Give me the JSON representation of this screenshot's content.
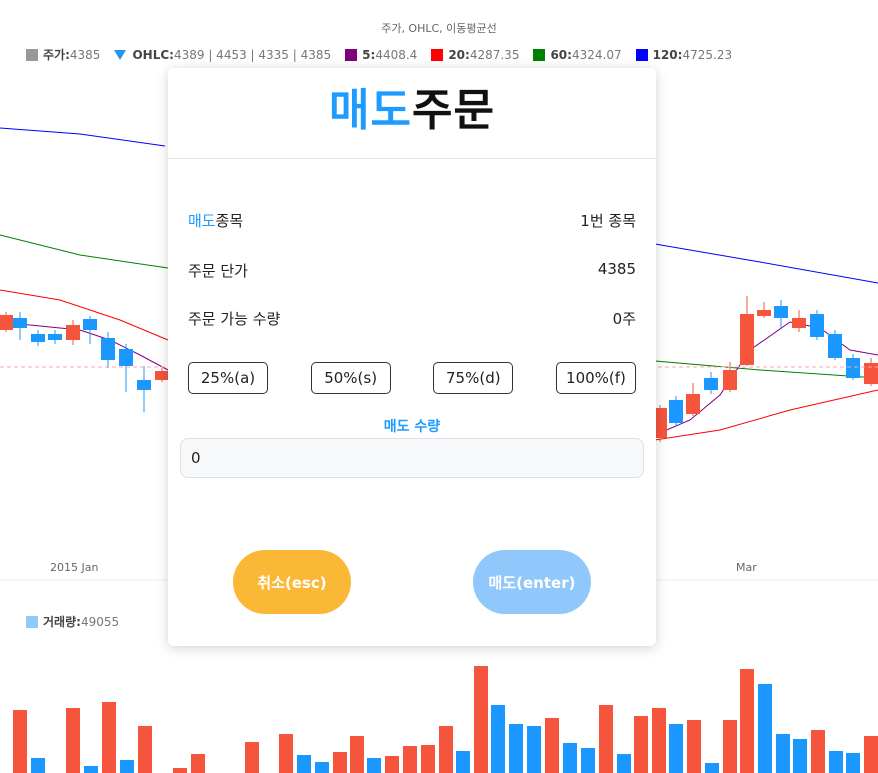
{
  "chart": {
    "title": "주가, OHLC, 이동평균선",
    "legend": [
      {
        "key": "price",
        "name": "주가",
        "value": "4385",
        "color": "#999999",
        "shape": "square"
      },
      {
        "key": "ohlc",
        "name": "OHLC",
        "value": "4389 | 4453 | 4335 | 4385",
        "color": "#2196f3",
        "shape": "triangle-down"
      },
      {
        "key": "ma5",
        "name": "5",
        "value": "4408.4",
        "color": "#800080",
        "shape": "square"
      },
      {
        "key": "ma20",
        "name": "20",
        "value": "4287.35",
        "color": "#ff0000",
        "shape": "square"
      },
      {
        "key": "ma60",
        "name": "60",
        "value": "4324.07",
        "color": "#008000",
        "shape": "square"
      },
      {
        "key": "ma120",
        "name": "120",
        "value": "4725.23",
        "color": "#0000ff",
        "shape": "square"
      }
    ],
    "x_labels": {
      "left": "2015 Jan",
      "right": "Mar"
    },
    "volume_legend": {
      "name": "거래량",
      "value": "49055",
      "color": "#90caf9"
    },
    "colors": {
      "up": "#f5543d",
      "down": "#1a98ff"
    }
  },
  "modal": {
    "title_accent": "매도",
    "title_rest": "주문",
    "item_label_accent": "매도",
    "item_label_rest": "종목",
    "item_value": "1번 종목",
    "unit_price_label": "주문 단가",
    "unit_price_value": "4385",
    "available_label": "주문 가능 수량",
    "available_value": "0주",
    "pct_buttons": [
      "25%(a)",
      "50%(s)",
      "75%(d)",
      "100%(f)"
    ],
    "qty_label": "매도 수량",
    "qty_value": "0",
    "cancel_label": "취소(esc)",
    "sell_label": "매도(enter)"
  }
}
